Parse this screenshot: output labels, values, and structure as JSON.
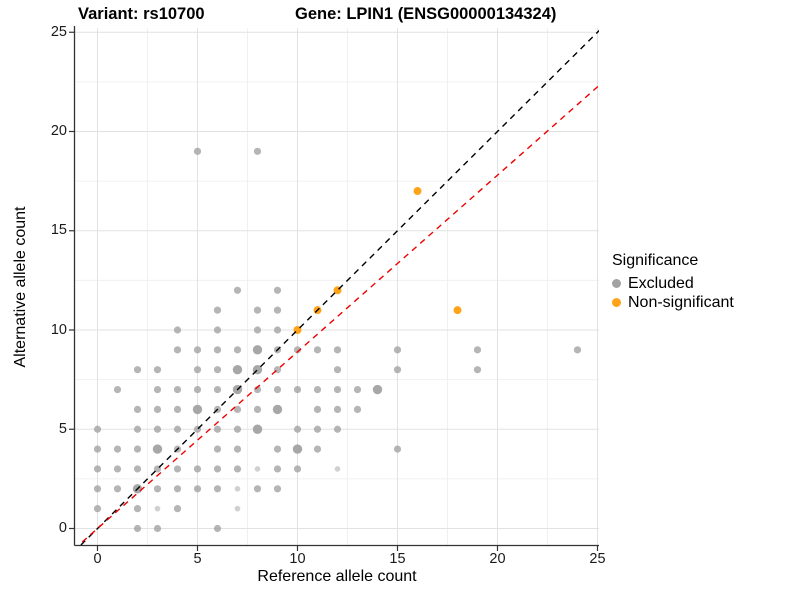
{
  "title": {
    "left": "Variant: rs10700",
    "right": "Gene: LPIN1 (ENSG00000134324)"
  },
  "axes": {
    "x": {
      "label": "Reference allele count",
      "ticks": [
        0,
        5,
        10,
        15,
        20,
        25
      ]
    },
    "y": {
      "label": "Alternative allele count",
      "ticks": [
        0,
        5,
        10,
        15,
        20,
        25
      ]
    }
  },
  "legend": {
    "title": "Significance",
    "items": [
      {
        "label": "Excluded",
        "color": "#a2a2a2"
      },
      {
        "label": "Non-significant",
        "color": "#ffa319"
      }
    ]
  },
  "colors": {
    "grid_major": "#e2e2e2",
    "grid_minor": "#f0f0f0",
    "axis_line": "#333333",
    "identity_line": "#000000",
    "fit_line": "#ee0000"
  },
  "chart_data": {
    "type": "scatter",
    "title": "Variant: rs10700 / Gene: LPIN1 (ENSG00000134324)",
    "xlabel": "Reference allele count",
    "ylabel": "Alternative allele count",
    "xlim": [
      -1.2,
      25.4
    ],
    "ylim": [
      -0.9,
      25.2
    ],
    "x_ticks": [
      0,
      5,
      10,
      15,
      20,
      25
    ],
    "y_ticks": [
      0,
      5,
      10,
      15,
      20,
      25
    ],
    "minor_ticks": [
      2.5,
      7.5,
      12.5,
      17.5,
      22.5
    ],
    "grid": true,
    "legend_position": "right-middle",
    "series": [
      {
        "name": "Excluded",
        "color": "#a2a2a2",
        "points": [
          [
            2,
            0
          ],
          [
            3,
            0
          ],
          [
            6,
            0
          ],
          [
            0,
            1
          ],
          [
            2,
            1
          ],
          [
            3,
            1,
            0
          ],
          [
            4,
            1
          ],
          [
            7,
            1,
            0
          ],
          [
            0,
            2
          ],
          [
            1,
            2
          ],
          [
            2,
            2,
            2
          ],
          [
            3,
            2
          ],
          [
            4,
            2
          ],
          [
            5,
            2
          ],
          [
            6,
            2
          ],
          [
            7,
            2,
            0
          ],
          [
            8,
            2
          ],
          [
            9,
            2
          ],
          [
            0,
            3
          ],
          [
            1,
            3
          ],
          [
            2,
            3
          ],
          [
            3,
            3
          ],
          [
            4,
            3
          ],
          [
            5,
            3
          ],
          [
            6,
            3
          ],
          [
            7,
            3
          ],
          [
            8,
            3,
            0
          ],
          [
            9,
            3
          ],
          [
            10,
            3
          ],
          [
            12,
            3,
            0
          ],
          [
            0,
            4
          ],
          [
            1,
            4
          ],
          [
            2,
            4
          ],
          [
            3,
            4,
            2
          ],
          [
            4,
            4
          ],
          [
            6,
            4
          ],
          [
            7,
            4
          ],
          [
            9,
            4
          ],
          [
            10,
            4,
            2
          ],
          [
            11,
            4
          ],
          [
            15,
            4
          ],
          [
            0,
            5
          ],
          [
            2,
            5
          ],
          [
            3,
            5
          ],
          [
            4,
            5
          ],
          [
            5,
            5
          ],
          [
            6,
            5
          ],
          [
            7,
            5
          ],
          [
            8,
            5,
            2
          ],
          [
            10,
            5
          ],
          [
            11,
            5
          ],
          [
            12,
            5
          ],
          [
            2,
            6
          ],
          [
            3,
            6
          ],
          [
            4,
            6
          ],
          [
            5,
            6,
            2
          ],
          [
            6,
            6
          ],
          [
            7,
            6
          ],
          [
            8,
            6
          ],
          [
            9,
            6,
            2
          ],
          [
            11,
            6
          ],
          [
            12,
            6
          ],
          [
            13,
            6
          ],
          [
            1,
            7
          ],
          [
            3,
            7
          ],
          [
            4,
            7
          ],
          [
            5,
            7
          ],
          [
            6,
            7
          ],
          [
            7,
            7,
            2
          ],
          [
            8,
            7
          ],
          [
            9,
            7
          ],
          [
            10,
            7
          ],
          [
            11,
            7
          ],
          [
            12,
            7
          ],
          [
            13,
            7
          ],
          [
            14,
            7,
            2
          ],
          [
            2,
            8
          ],
          [
            3,
            8
          ],
          [
            5,
            8
          ],
          [
            6,
            8
          ],
          [
            7,
            8,
            2
          ],
          [
            8,
            8,
            2
          ],
          [
            9,
            8
          ],
          [
            12,
            8
          ],
          [
            15,
            8
          ],
          [
            19,
            8
          ],
          [
            4,
            9
          ],
          [
            5,
            9
          ],
          [
            6,
            9
          ],
          [
            7,
            9
          ],
          [
            8,
            9,
            2
          ],
          [
            9,
            9
          ],
          [
            10,
            9
          ],
          [
            11,
            9
          ],
          [
            12,
            9
          ],
          [
            15,
            9
          ],
          [
            19,
            9
          ],
          [
            24,
            9
          ],
          [
            4,
            10
          ],
          [
            6,
            10
          ],
          [
            8,
            10
          ],
          [
            9,
            10
          ],
          [
            6,
            11
          ],
          [
            8,
            11
          ],
          [
            9,
            11
          ],
          [
            7,
            12
          ],
          [
            9,
            12
          ],
          [
            5,
            19
          ],
          [
            8,
            19
          ]
        ]
      },
      {
        "name": "Non-significant",
        "color": "#ffa319",
        "points": [
          [
            10,
            10
          ],
          [
            11,
            11
          ],
          [
            12,
            12
          ],
          [
            16,
            17
          ],
          [
            18,
            11
          ]
        ]
      }
    ],
    "lines": [
      {
        "name": "identity-line",
        "slope": 1,
        "intercept": 0,
        "color": "#000000",
        "style": "dashed"
      },
      {
        "name": "fit-line",
        "slope": 0.89,
        "intercept": 0,
        "color": "#ee0000",
        "style": "dashed"
      }
    ]
  }
}
